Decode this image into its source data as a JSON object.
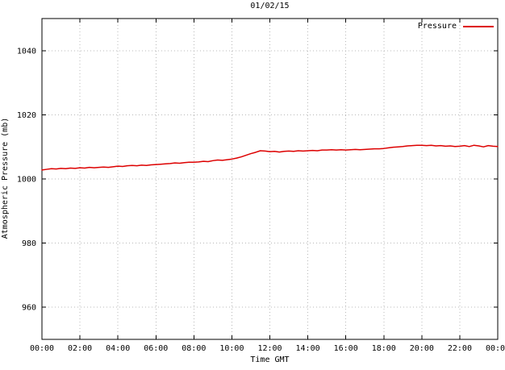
{
  "chart_data": {
    "type": "line",
    "title": "01/02/15",
    "xlabel": "Time GMT",
    "ylabel": "Atmospheric Pressure (mb)",
    "xlim": [
      0,
      24
    ],
    "ylim": [
      950,
      1050
    ],
    "grid": true,
    "legend_position": "top-right",
    "line_color": "#dd0000",
    "grid_color": "#b8b8b8",
    "border_color": "#000000",
    "xticks": {
      "values": [
        0,
        2,
        4,
        6,
        8,
        10,
        12,
        14,
        16,
        18,
        20,
        22,
        24
      ],
      "labels": [
        "00:00",
        "02:00",
        "04:00",
        "06:00",
        "08:00",
        "10:00",
        "12:00",
        "14:00",
        "16:00",
        "18:00",
        "20:00",
        "22:00",
        "00:00"
      ]
    },
    "yticks": {
      "values": [
        960,
        980,
        1000,
        1020,
        1040
      ],
      "labels": [
        "960",
        "980",
        "1000",
        "1020",
        "1040"
      ]
    },
    "series": [
      {
        "name": "Pressure",
        "x_start_hours": 0,
        "x_step_hours": 0.25,
        "values": [
          1002.8,
          1003.0,
          1003.2,
          1003.1,
          1003.3,
          1003.2,
          1003.4,
          1003.3,
          1003.5,
          1003.4,
          1003.6,
          1003.5,
          1003.6,
          1003.7,
          1003.6,
          1003.8,
          1004.0,
          1003.9,
          1004.1,
          1004.2,
          1004.1,
          1004.3,
          1004.2,
          1004.4,
          1004.5,
          1004.6,
          1004.7,
          1004.8,
          1005.0,
          1004.9,
          1005.1,
          1005.2,
          1005.2,
          1005.3,
          1005.5,
          1005.4,
          1005.7,
          1005.9,
          1005.8,
          1006.0,
          1006.2,
          1006.5,
          1006.9,
          1007.4,
          1007.9,
          1008.3,
          1008.8,
          1008.7,
          1008.5,
          1008.6,
          1008.4,
          1008.6,
          1008.7,
          1008.6,
          1008.8,
          1008.7,
          1008.8,
          1008.9,
          1008.8,
          1009.0,
          1009.0,
          1009.1,
          1009.0,
          1009.1,
          1009.0,
          1009.1,
          1009.2,
          1009.1,
          1009.2,
          1009.3,
          1009.4,
          1009.4,
          1009.5,
          1009.7,
          1009.9,
          1010.0,
          1010.1,
          1010.3,
          1010.4,
          1010.5,
          1010.5,
          1010.4,
          1010.5,
          1010.3,
          1010.4,
          1010.2,
          1010.3,
          1010.1,
          1010.2,
          1010.4,
          1010.1,
          1010.5,
          1010.3,
          1010.0,
          1010.4,
          1010.2,
          1010.1
        ]
      }
    ]
  }
}
